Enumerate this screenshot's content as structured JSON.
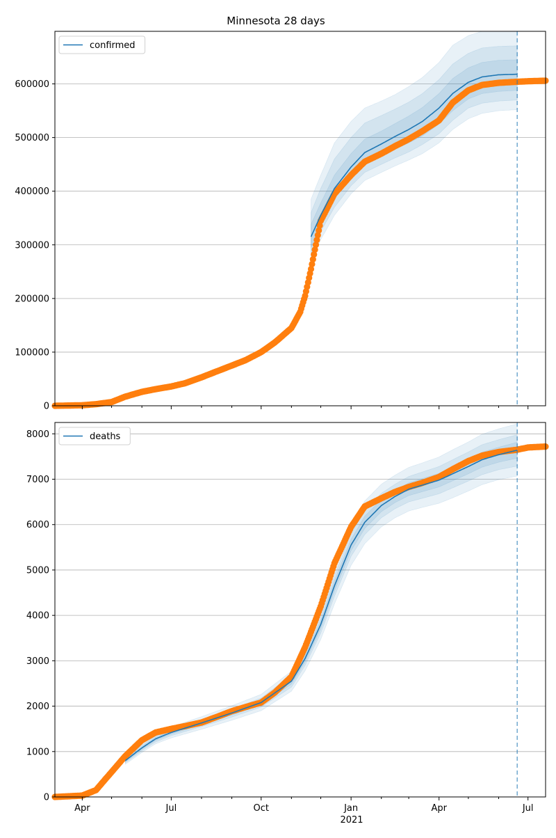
{
  "title": "Minnesota 28 days",
  "xaxis": {
    "tick_labels": [
      "Apr",
      "Jul",
      "Oct",
      "Jan",
      "Apr",
      "Jul"
    ],
    "tick_dates": [
      "2020-04-01",
      "2020-07-01",
      "2020-10-01",
      "2021-01-01",
      "2021-04-01",
      "2021-07-01"
    ],
    "year_label": "2021",
    "range": [
      "2020-03-04",
      "2021-07-19"
    ]
  },
  "colors": {
    "model": "#1f77b4",
    "observed": "#ff7f0e",
    "band": "#1f77b4",
    "grid": "#b0b0b0",
    "forecast_line": "#1f77b4"
  },
  "chart_data": [
    {
      "type": "line",
      "legend": "confirmed",
      "legend_position": "top-left",
      "grid": "horizontal",
      "ylim": [
        0,
        698000
      ],
      "yticks": [
        0,
        100000,
        200000,
        300000,
        400000,
        500000,
        600000
      ],
      "forecast_date": "2021-06-20",
      "model_dates": [
        "2020-11-21",
        "2020-12-01",
        "2020-12-15",
        "2021-01-01",
        "2021-01-15",
        "2021-02-01",
        "2021-02-15",
        "2021-03-01",
        "2021-03-15",
        "2021-04-01",
        "2021-04-15",
        "2021-05-01",
        "2021-05-15",
        "2021-06-01",
        "2021-06-20"
      ],
      "model_values": [
        315000,
        355000,
        405000,
        445000,
        472000,
        488000,
        502000,
        515000,
        530000,
        555000,
        582000,
        603000,
        613000,
        617000,
        618000
      ],
      "bands": [
        {
          "lower": [
            265000,
            310000,
            355000,
            395000,
            420000,
            435000,
            447000,
            458000,
            470000,
            490000,
            515000,
            535000,
            545000,
            550000,
            552000
          ],
          "upper": [
            385000,
            430000,
            490000,
            530000,
            555000,
            568000,
            580000,
            595000,
            612000,
            640000,
            672000,
            690000,
            698000,
            698000,
            698000
          ]
        },
        {
          "lower": [
            280000,
            325000,
            370000,
            410000,
            435000,
            450000,
            462000,
            473000,
            487000,
            507000,
            532000,
            555000,
            564000,
            568000,
            570000
          ],
          "upper": [
            360000,
            405000,
            460000,
            500000,
            527000,
            541000,
            553000,
            566000,
            582000,
            608000,
            637000,
            657000,
            667000,
            670000,
            671000
          ]
        },
        {
          "lower": [
            295000,
            340000,
            387000,
            425000,
            450000,
            466000,
            478000,
            490000,
            503000,
            525000,
            550000,
            572000,
            582000,
            586000,
            588000
          ],
          "upper": [
            338000,
            378000,
            430000,
            470000,
            497000,
            512000,
            526000,
            540000,
            556000,
            582000,
            610000,
            630000,
            640000,
            644000,
            645000
          ]
        }
      ],
      "observed_dates": [
        "2020-03-04",
        "2020-04-01",
        "2020-04-15",
        "2020-05-01",
        "2020-05-15",
        "2020-06-01",
        "2020-06-15",
        "2020-07-01",
        "2020-07-15",
        "2020-08-01",
        "2020-08-15",
        "2020-09-01",
        "2020-09-15",
        "2020-10-01",
        "2020-10-15",
        "2020-11-01",
        "2020-11-10",
        "2020-11-15",
        "2020-11-21",
        "2020-12-01",
        "2020-12-15",
        "2021-01-01",
        "2021-01-15",
        "2021-02-01",
        "2021-02-15",
        "2021-03-01",
        "2021-03-15",
        "2021-04-01",
        "2021-04-15",
        "2021-05-01",
        "2021-05-15",
        "2021-06-01",
        "2021-06-20",
        "2021-07-01",
        "2021-07-19"
      ],
      "observed_values": [
        0,
        1000,
        3000,
        7000,
        17000,
        26000,
        31000,
        36000,
        42000,
        53000,
        63000,
        75000,
        85000,
        100000,
        118000,
        145000,
        175000,
        205000,
        255000,
        345000,
        395000,
        430000,
        455000,
        470000,
        484000,
        497000,
        512000,
        532000,
        565000,
        588000,
        598000,
        602000,
        604000,
        605000,
        606000
      ]
    },
    {
      "type": "line",
      "legend": "deaths",
      "legend_position": "top-left",
      "grid": "horizontal",
      "ylim": [
        0,
        8250
      ],
      "yticks": [
        0,
        1000,
        2000,
        3000,
        4000,
        5000,
        6000,
        7000,
        8000
      ],
      "forecast_date": "2021-06-20",
      "model_dates": [
        "2020-05-15",
        "2020-06-01",
        "2020-06-15",
        "2020-07-01",
        "2020-08-01",
        "2020-09-01",
        "2020-10-01",
        "2020-11-01",
        "2020-11-15",
        "2020-12-01",
        "2020-12-15",
        "2021-01-01",
        "2021-01-15",
        "2021-02-01",
        "2021-02-15",
        "2021-03-01",
        "2021-03-15",
        "2021-04-01",
        "2021-04-15",
        "2021-05-01",
        "2021-05-15",
        "2021-06-01",
        "2021-06-20"
      ],
      "model_values": [
        800,
        1080,
        1280,
        1420,
        1630,
        1850,
        2080,
        2550,
        3050,
        3800,
        4650,
        5550,
        6050,
        6420,
        6620,
        6780,
        6870,
        6980,
        7120,
        7280,
        7430,
        7540,
        7640
      ],
      "bands": [
        {
          "lower": [
            720,
            980,
            1170,
            1300,
            1490,
            1690,
            1900,
            2330,
            2780,
            3470,
            4250,
            5100,
            5580,
            5950,
            6150,
            6300,
            6380,
            6470,
            6590,
            6740,
            6880,
            6990,
            7070
          ],
          "upper": [
            880,
            1180,
            1390,
            1540,
            1770,
            2010,
            2260,
            2770,
            3320,
            4130,
            5050,
            6000,
            6520,
            6890,
            7090,
            7260,
            7360,
            7490,
            7650,
            7820,
            7990,
            8110,
            8220
          ]
        },
        {
          "lower": [
            750,
            1020,
            1210,
            1350,
            1550,
            1760,
            1980,
            2420,
            2900,
            3610,
            4420,
            5300,
            5780,
            6150,
            6350,
            6500,
            6580,
            6680,
            6810,
            6960,
            7100,
            7210,
            7290
          ],
          "upper": [
            850,
            1140,
            1350,
            1490,
            1710,
            1940,
            2180,
            2680,
            3200,
            3990,
            4880,
            5800,
            6320,
            6690,
            6890,
            7060,
            7160,
            7280,
            7430,
            7600,
            7760,
            7870,
            7980
          ]
        },
        {
          "lower": [
            775,
            1050,
            1245,
            1385,
            1590,
            1805,
            2030,
            2485,
            2975,
            3705,
            4535,
            5425,
            5915,
            6285,
            6485,
            6640,
            6725,
            6830,
            6965,
            7120,
            7265,
            7375,
            7465
          ],
          "upper": [
            825,
            1110,
            1315,
            1455,
            1670,
            1895,
            2130,
            2615,
            3125,
            3895,
            4765,
            5675,
            6185,
            6555,
            6755,
            6920,
            7015,
            7130,
            7275,
            7440,
            7595,
            7705,
            7815
          ]
        }
      ],
      "observed_dates": [
        "2020-03-04",
        "2020-04-01",
        "2020-04-15",
        "2020-05-01",
        "2020-05-15",
        "2020-06-01",
        "2020-06-15",
        "2020-07-01",
        "2020-07-15",
        "2020-08-01",
        "2020-08-15",
        "2020-09-01",
        "2020-09-15",
        "2020-10-01",
        "2020-10-15",
        "2020-11-01",
        "2020-11-15",
        "2020-12-01",
        "2020-12-15",
        "2021-01-01",
        "2021-01-15",
        "2021-02-01",
        "2021-02-15",
        "2021-03-01",
        "2021-03-15",
        "2021-04-01",
        "2021-04-15",
        "2021-05-01",
        "2021-05-15",
        "2021-06-01",
        "2021-06-20",
        "2021-07-01",
        "2021-07-19"
      ],
      "observed_values": [
        0,
        30,
        150,
        550,
        900,
        1250,
        1420,
        1500,
        1560,
        1640,
        1750,
        1890,
        1980,
        2080,
        2300,
        2650,
        3300,
        4200,
        5150,
        5950,
        6400,
        6580,
        6720,
        6830,
        6920,
        7050,
        7220,
        7400,
        7520,
        7600,
        7650,
        7700,
        7720
      ]
    }
  ]
}
